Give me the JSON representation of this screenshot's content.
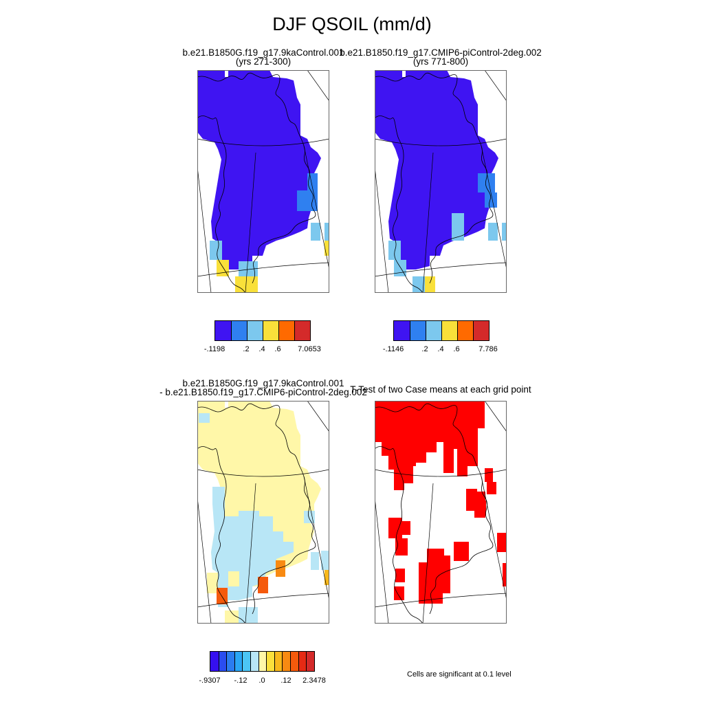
{
  "title": "DJF QSOIL (mm/d)",
  "panels": {
    "case1": {
      "title_line1": "b.e21.B1850G.f19_g17.9kaControl.001",
      "title_line2": "(yrs 271-300)"
    },
    "case2": {
      "title_line1": "b.e21.B1850.f19_g17.CMIP6-piControl-2deg.002",
      "title_line2": "(yrs 771-800)"
    },
    "diff": {
      "title_line1": "b.e21.B1850G.f19_g17.9kaControl.001",
      "title_line2": "- b.e21.B1850.f19_g17.CMIP6-piControl-2deg.002"
    },
    "ttest": {
      "title_line1": "T-Test of two Case means at each grid point",
      "note": "Cells are significant at 0.1 level"
    }
  },
  "colorbars": {
    "case1": {
      "colors": [
        "#3f14f2",
        "#2f80f0",
        "#7cc8ee",
        "#f9e03a",
        "#ff6a00",
        "#d42a2a"
      ],
      "labels": [
        "-.1198",
        ".2",
        ".4",
        ".6",
        "7.0653"
      ]
    },
    "case2": {
      "colors": [
        "#3f14f2",
        "#2f80f0",
        "#7cc8ee",
        "#f9e03a",
        "#ff6a00",
        "#d42a2a"
      ],
      "labels": [
        "-.1146",
        ".2",
        ".4",
        ".6",
        "7.786"
      ]
    },
    "diff": {
      "colors": [
        "#3510f0",
        "#2a4df0",
        "#2b7cf0",
        "#2aa6f5",
        "#4cc6f5",
        "#b8e6f6",
        "#fff7a8",
        "#fbe03c",
        "#f8b81c",
        "#f88a12",
        "#f55a0c",
        "#e52a14",
        "#d42a2a"
      ],
      "labels": [
        "-.9307",
        "-.12",
        ".0",
        ".12",
        "2.3478"
      ]
    }
  },
  "colors": {
    "blue_dark": "#3f14f2",
    "blue_mid": "#2f80f0",
    "blue_light": "#7cc8ee",
    "yellow": "#f9e03a",
    "pale_yellow": "#fff7a8",
    "pale_blue": "#b8e6f6",
    "orange": "#f88a12",
    "red_orange": "#f55a0c",
    "significant_red": "#ff0000"
  }
}
